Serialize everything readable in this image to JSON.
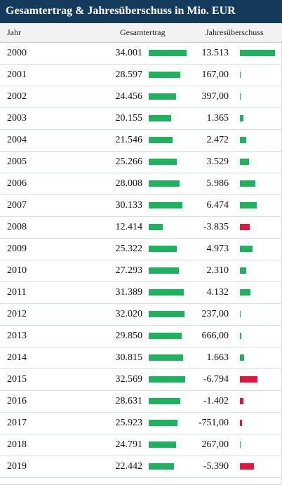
{
  "title": "Gesamtertrag & Jahresüberschuss in Mio. EUR",
  "columns": {
    "year": "Jahr",
    "gesamtertrag": "Gesamtertrag",
    "jahresueberschuss": "Jahresüberschuss"
  },
  "colors": {
    "header_bg": "#143a5c",
    "positive": "#1db35e",
    "negative": "#e3143d"
  },
  "chart_data": {
    "type": "table",
    "title": "Gesamtertrag & Jahresüberschuss in Mio. EUR",
    "columns": [
      "Jahr",
      "Gesamtertrag",
      "Jahresüberschuss"
    ],
    "rows": [
      {
        "year": "2000",
        "ge_label": "34.001",
        "ge": 34001,
        "ju_label": "13.513",
        "ju": 13513
      },
      {
        "year": "2001",
        "ge_label": "28.597",
        "ge": 28597,
        "ju_label": "167,00",
        "ju": 167
      },
      {
        "year": "2002",
        "ge_label": "24.456",
        "ge": 24456,
        "ju_label": "397,00",
        "ju": 397
      },
      {
        "year": "2003",
        "ge_label": "20.155",
        "ge": 20155,
        "ju_label": "1.365",
        "ju": 1365
      },
      {
        "year": "2004",
        "ge_label": "21.546",
        "ge": 21546,
        "ju_label": "2.472",
        "ju": 2472
      },
      {
        "year": "2005",
        "ge_label": "25.266",
        "ge": 25266,
        "ju_label": "3.529",
        "ju": 3529
      },
      {
        "year": "2006",
        "ge_label": "28.008",
        "ge": 28008,
        "ju_label": "5.986",
        "ju": 5986
      },
      {
        "year": "2007",
        "ge_label": "30.133",
        "ge": 30133,
        "ju_label": "6.474",
        "ju": 6474
      },
      {
        "year": "2008",
        "ge_label": "12.414",
        "ge": 12414,
        "ju_label": "-3.835",
        "ju": -3835
      },
      {
        "year": "2009",
        "ge_label": "25.322",
        "ge": 25322,
        "ju_label": "4.973",
        "ju": 4973
      },
      {
        "year": "2010",
        "ge_label": "27.293",
        "ge": 27293,
        "ju_label": "2.310",
        "ju": 2310
      },
      {
        "year": "2011",
        "ge_label": "31.389",
        "ge": 31389,
        "ju_label": "4.132",
        "ju": 4132
      },
      {
        "year": "2012",
        "ge_label": "32.020",
        "ge": 32020,
        "ju_label": "237,00",
        "ju": 237
      },
      {
        "year": "2013",
        "ge_label": "29.850",
        "ge": 29850,
        "ju_label": "666,00",
        "ju": 666
      },
      {
        "year": "2014",
        "ge_label": "30.815",
        "ge": 30815,
        "ju_label": "1.663",
        "ju": 1663
      },
      {
        "year": "2015",
        "ge_label": "32.569",
        "ge": 32569,
        "ju_label": "-6.794",
        "ju": -6794
      },
      {
        "year": "2016",
        "ge_label": "28.631",
        "ge": 28631,
        "ju_label": "-1.402",
        "ju": -1402
      },
      {
        "year": "2017",
        "ge_label": "25.923",
        "ge": 25923,
        "ju_label": "-751,00",
        "ju": -751
      },
      {
        "year": "2018",
        "ge_label": "24.791",
        "ge": 24791,
        "ju_label": "267,00",
        "ju": 267
      },
      {
        "year": "2019",
        "ge_label": "22.442",
        "ge": 22442,
        "ju_label": "-5.390",
        "ju": -5390
      }
    ]
  }
}
